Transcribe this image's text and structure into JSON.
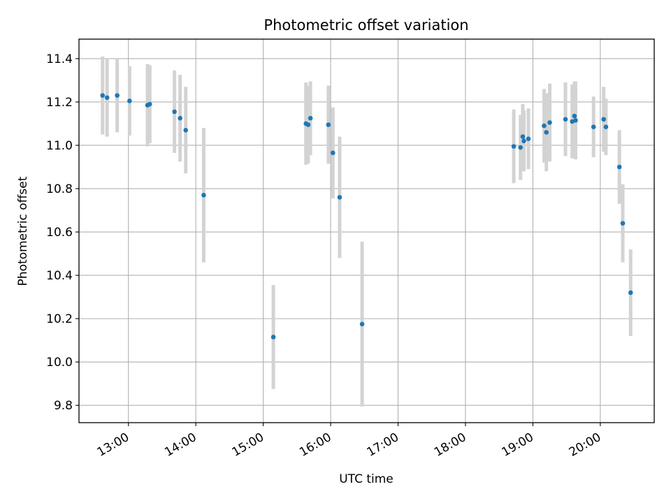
{
  "chart_data": {
    "type": "scatter",
    "title": "Photometric offset variation",
    "xlabel": "UTC time",
    "ylabel": "Photometric offset",
    "grid": true,
    "x_ticks": [
      "13:00",
      "14:00",
      "15:00",
      "16:00",
      "17:00",
      "18:00",
      "19:00",
      "20:00"
    ],
    "xlim": [
      "12:16",
      "20:48"
    ],
    "ylim": [
      9.72,
      11.49
    ],
    "y_ticks": [
      "9.8",
      "10.0",
      "10.2",
      "10.4",
      "10.6",
      "10.8",
      "11.0",
      "11.2",
      "11.4"
    ],
    "colors": {
      "point": "#1f77b4",
      "errorbar": "#d3d3d3",
      "grid": "#b0b0b0"
    },
    "points": [
      {
        "x": "12:37",
        "y": 11.23,
        "err": 0.18
      },
      {
        "x": "12:41",
        "y": 11.22,
        "err": 0.18
      },
      {
        "x": "12:50",
        "y": 11.23,
        "err": 0.17
      },
      {
        "x": "13:01",
        "y": 11.205,
        "err": 0.16
      },
      {
        "x": "13:17",
        "y": 11.185,
        "err": 0.19
      },
      {
        "x": "13:19",
        "y": 11.19,
        "err": 0.18
      },
      {
        "x": "13:41",
        "y": 11.155,
        "err": 0.19
      },
      {
        "x": "13:46",
        "y": 11.125,
        "err": 0.2
      },
      {
        "x": "13:51",
        "y": 11.07,
        "err": 0.2
      },
      {
        "x": "14:07",
        "y": 10.77,
        "err": 0.31
      },
      {
        "x": "15:09",
        "y": 10.115,
        "err": 0.24
      },
      {
        "x": "15:38",
        "y": 11.1,
        "err": 0.19
      },
      {
        "x": "15:40",
        "y": 11.095,
        "err": 0.18
      },
      {
        "x": "15:42",
        "y": 11.125,
        "err": 0.17
      },
      {
        "x": "15:58",
        "y": 11.095,
        "err": 0.18
      },
      {
        "x": "16:02",
        "y": 10.965,
        "err": 0.21
      },
      {
        "x": "16:08",
        "y": 10.76,
        "err": 0.28
      },
      {
        "x": "16:28",
        "y": 10.175,
        "err": 0.38
      },
      {
        "x": "18:43",
        "y": 10.995,
        "err": 0.17
      },
      {
        "x": "18:49",
        "y": 10.99,
        "err": 0.15
      },
      {
        "x": "18:51",
        "y": 11.04,
        "err": 0.15
      },
      {
        "x": "18:52",
        "y": 11.02,
        "err": 0.14
      },
      {
        "x": "18:56",
        "y": 11.03,
        "err": 0.14
      },
      {
        "x": "19:10",
        "y": 11.09,
        "err": 0.17
      },
      {
        "x": "19:12",
        "y": 11.06,
        "err": 0.18
      },
      {
        "x": "19:15",
        "y": 11.105,
        "err": 0.18
      },
      {
        "x": "19:29",
        "y": 11.12,
        "err": 0.17
      },
      {
        "x": "19:35",
        "y": 11.11,
        "err": 0.17
      },
      {
        "x": "19:37",
        "y": 11.135,
        "err": 0.16
      },
      {
        "x": "19:38",
        "y": 11.115,
        "err": 0.18
      },
      {
        "x": "19:54",
        "y": 11.085,
        "err": 0.14
      },
      {
        "x": "20:03",
        "y": 11.12,
        "err": 0.15
      },
      {
        "x": "20:05",
        "y": 11.085,
        "err": 0.13
      },
      {
        "x": "20:17",
        "y": 10.9,
        "err": 0.17
      },
      {
        "x": "20:20",
        "y": 10.64,
        "err": 0.18
      },
      {
        "x": "20:27",
        "y": 10.32,
        "err": 0.2
      }
    ]
  }
}
